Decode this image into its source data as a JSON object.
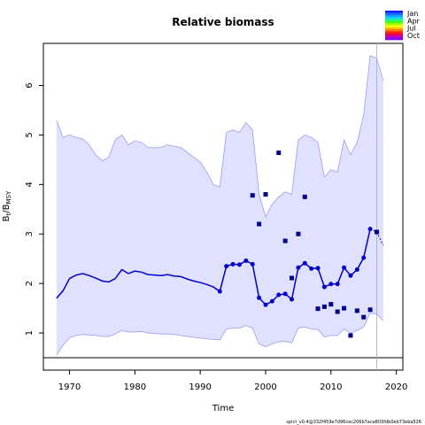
{
  "chart_data": {
    "type": "line",
    "title": "Relative biomass",
    "xlabel": "Time",
    "ylabel": "B_t/B_MSY",
    "xlim": [
      1966,
      2021
    ],
    "ylim": [
      0.25,
      6.85
    ],
    "xticks": [
      "1970",
      "1980",
      "1990",
      "2000",
      "2010",
      "2020"
    ],
    "yticks": [
      "1",
      "2",
      "3",
      "4",
      "5",
      "6"
    ],
    "reference_line_y": 0.5,
    "vertical_line_x": 2017,
    "legend": {
      "placement": "top-right",
      "entries": [
        "Jan",
        "Apr",
        "Jul",
        "Oct"
      ]
    },
    "footnote": "spict_v0.4@332f459e7d96cec206b7aca803fdb0eb73eba526",
    "colors": {
      "band_fill": "#e0e0ff",
      "band_line": "#9c9cf0",
      "series": "#0000c8",
      "points": "#00008b"
    },
    "series": [
      {
        "name": "",
        "role": "estimate",
        "x": [
          1968,
          1969,
          1970,
          1971,
          1972,
          1973,
          1974,
          1975,
          1976,
          1977,
          1978,
          1979,
          1980,
          1981,
          1982,
          1983,
          1984,
          1985,
          1986,
          1987,
          1988,
          1989,
          1990,
          1991,
          1992,
          1993,
          1994,
          1995,
          1996,
          1997,
          1998,
          1999,
          2000,
          2001,
          2002,
          2003,
          2004,
          2005,
          2006,
          2007,
          2008,
          2009,
          2010,
          2011,
          2012,
          2013,
          2014,
          2015,
          2016
        ],
        "values": [
          1.7,
          1.85,
          2.1,
          2.17,
          2.2,
          2.16,
          2.11,
          2.05,
          2.03,
          2.1,
          2.28,
          2.2,
          2.25,
          2.23,
          2.18,
          2.17,
          2.16,
          2.18,
          2.15,
          2.14,
          2.09,
          2.05,
          2.02,
          1.98,
          1.93,
          1.84,
          2.35,
          2.39,
          2.38,
          2.46,
          2.39,
          1.71,
          1.57,
          1.64,
          1.77,
          1.79,
          1.68,
          2.32,
          2.41,
          2.3,
          2.31,
          1.93,
          1.99,
          1.99,
          2.32,
          2.16,
          2.28,
          2.52,
          3.1
        ]
      },
      {
        "name": "",
        "role": "forecast",
        "x": [
          2016,
          2017,
          2018
        ],
        "values": [
          3.1,
          3.04,
          2.77
        ]
      },
      {
        "name": "",
        "role": "observations",
        "x": [
          1998,
          1999,
          2000,
          2002,
          2003,
          2004,
          2005,
          2006,
          2008,
          2009,
          2010,
          2011,
          2012,
          2013,
          2014,
          2015,
          2016,
          2017
        ],
        "values": [
          3.78,
          3.2,
          3.8,
          4.64,
          2.86,
          2.11,
          3.0,
          3.75,
          1.49,
          1.53,
          1.58,
          1.43,
          1.5,
          0.95,
          1.45,
          1.32,
          1.47,
          3.04
        ]
      },
      {
        "name": "",
        "role": "ci_upper",
        "x": [
          1968,
          1969,
          1970,
          1971,
          1972,
          1973,
          1974,
          1975,
          1976,
          1977,
          1978,
          1979,
          1980,
          1981,
          1982,
          1983,
          1984,
          1985,
          1986,
          1987,
          1988,
          1989,
          1990,
          1991,
          1992,
          1993,
          1994,
          1995,
          1996,
          1997,
          1998,
          1999,
          2000,
          2001,
          2002,
          2003,
          2004,
          2005,
          2006,
          2007,
          2008,
          2009,
          2010,
          2011,
          2012,
          2013,
          2014,
          2015,
          2016,
          2017,
          2018
        ],
        "values": [
          5.3,
          4.95,
          5.0,
          4.95,
          4.92,
          4.8,
          4.6,
          4.48,
          4.55,
          4.9,
          5.0,
          4.8,
          4.88,
          4.85,
          4.75,
          4.74,
          4.75,
          4.8,
          4.77,
          4.75,
          4.65,
          4.55,
          4.45,
          4.25,
          4.0,
          3.95,
          5.05,
          5.1,
          5.05,
          5.25,
          5.1,
          3.8,
          3.35,
          3.6,
          3.75,
          3.85,
          3.8,
          4.9,
          5.0,
          4.95,
          4.85,
          4.15,
          4.3,
          4.25,
          4.9,
          4.6,
          4.85,
          5.4,
          6.6,
          6.55,
          6.1
        ]
      },
      {
        "name": "",
        "role": "ci_lower",
        "x": [
          1968,
          1969,
          1970,
          1971,
          1972,
          1973,
          1974,
          1975,
          1976,
          1977,
          1978,
          1979,
          1980,
          1981,
          1982,
          1983,
          1984,
          1985,
          1986,
          1987,
          1988,
          1989,
          1990,
          1991,
          1992,
          1993,
          1994,
          1995,
          1996,
          1997,
          1998,
          1999,
          2000,
          2001,
          2002,
          2003,
          2004,
          2005,
          2006,
          2007,
          2008,
          2009,
          2010,
          2011,
          2012,
          2013,
          2014,
          2015,
          2016,
          2017,
          2018
        ],
        "values": [
          0.55,
          0.75,
          0.9,
          0.95,
          0.97,
          0.96,
          0.95,
          0.93,
          0.93,
          0.98,
          1.05,
          1.02,
          1.02,
          1.03,
          1.0,
          0.99,
          0.98,
          0.98,
          0.97,
          0.95,
          0.93,
          0.91,
          0.9,
          0.88,
          0.87,
          0.86,
          1.08,
          1.1,
          1.1,
          1.15,
          1.1,
          0.78,
          0.72,
          0.78,
          0.82,
          0.83,
          0.8,
          1.1,
          1.12,
          1.08,
          1.07,
          0.92,
          0.95,
          0.95,
          1.08,
          1.0,
          1.05,
          1.12,
          1.4,
          1.38,
          1.25
        ]
      }
    ]
  }
}
